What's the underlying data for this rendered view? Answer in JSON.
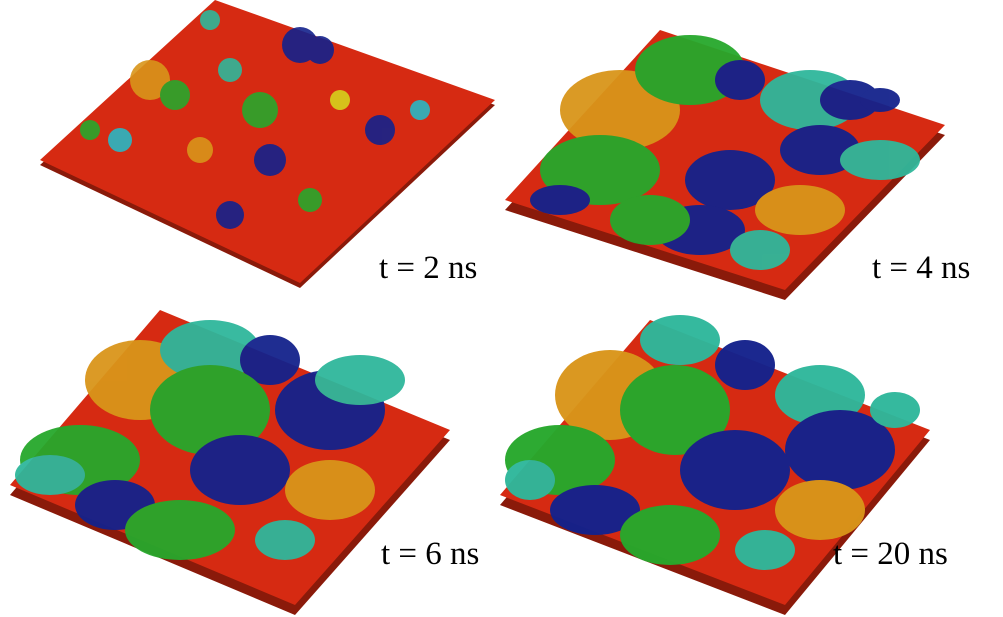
{
  "figure": {
    "panels": [
      {
        "time_label": "t = 2 ns"
      },
      {
        "time_label": "t = 4 ns"
      },
      {
        "time_label": "t = 6 ns"
      },
      {
        "time_label": "t = 20 ns"
      }
    ],
    "colors": {
      "substrate": "#d62a12",
      "substrate_dark": "#8a1a0a",
      "navy": "#14228c",
      "teal": "#2fb79b",
      "green": "#27a82c",
      "orange": "#d9951a",
      "yellow": "#d6d21c",
      "cyan": "#2ab7c4"
    }
  }
}
